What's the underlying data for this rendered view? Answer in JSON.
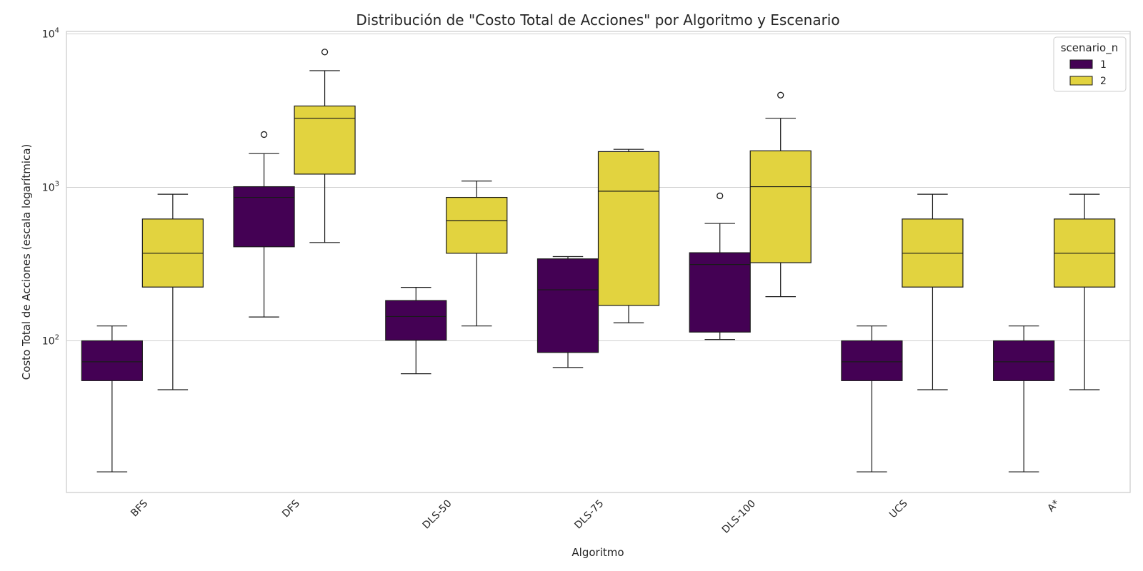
{
  "chart_data": {
    "type": "boxplot",
    "title": "Distribución de \"Costo Total de Acciones\" por Algoritmo y Escenario",
    "xlabel": "Algoritmo",
    "ylabel": "Costo Total de Acciones (escala logarítmica)",
    "yscale": "log",
    "ylim": [
      10,
      11000
    ],
    "yticks": [
      {
        "value": 100,
        "base": "10",
        "exp": "2"
      },
      {
        "value": 1000,
        "base": "10",
        "exp": "3"
      },
      {
        "value": 10000,
        "base": "10",
        "exp": "4"
      }
    ],
    "grid": "horizontal",
    "categories": [
      "BFS",
      "DFS",
      "DLS-50",
      "DLS-75",
      "DLS-100",
      "UCS",
      "A*"
    ],
    "legend": {
      "title": "scenario_n",
      "placement": "top-right"
    },
    "series": [
      {
        "name": "1",
        "color": "#440154",
        "boxes": [
          {
            "whisker_low": 14,
            "q1": 55,
            "median": 73,
            "q3": 100,
            "whisker_high": 125,
            "outliers": []
          },
          {
            "whisker_low": 143,
            "q1": 410,
            "median": 860,
            "q3": 1010,
            "whisker_high": 1660,
            "outliers": [
              2210
            ]
          },
          {
            "whisker_low": 61,
            "q1": 101,
            "median": 144,
            "q3": 183,
            "whisker_high": 223,
            "outliers": []
          },
          {
            "whisker_low": 67,
            "q1": 84,
            "median": 215,
            "q3": 342,
            "whisker_high": 354,
            "outliers": []
          },
          {
            "whisker_low": 102,
            "q1": 114,
            "median": 314,
            "q3": 375,
            "whisker_high": 582,
            "outliers": [
              880
            ]
          },
          {
            "whisker_low": 14,
            "q1": 55,
            "median": 73,
            "q3": 100,
            "whisker_high": 125,
            "outliers": []
          },
          {
            "whisker_low": 14,
            "q1": 55,
            "median": 73,
            "q3": 100,
            "whisker_high": 125,
            "outliers": []
          }
        ]
      },
      {
        "name": "2",
        "color": "#e2d33f",
        "boxes": [
          {
            "whisker_low": 48,
            "q1": 224,
            "median": 372,
            "q3": 622,
            "whisker_high": 902,
            "outliers": []
          },
          {
            "whisker_low": 437,
            "q1": 1220,
            "median": 2820,
            "q3": 3390,
            "whisker_high": 5760,
            "outliers": [
              7620
            ]
          },
          {
            "whisker_low": 125,
            "q1": 372,
            "median": 607,
            "q3": 860,
            "whisker_high": 1100,
            "outliers": []
          },
          {
            "whisker_low": 131,
            "q1": 170,
            "median": 944,
            "q3": 1710,
            "whisker_high": 1770,
            "outliers": []
          },
          {
            "whisker_low": 194,
            "q1": 323,
            "median": 1010,
            "q3": 1730,
            "whisker_high": 2820,
            "outliers": [
              3990
            ]
          },
          {
            "whisker_low": 48,
            "q1": 224,
            "median": 372,
            "q3": 622,
            "whisker_high": 902,
            "outliers": []
          },
          {
            "whisker_low": 48,
            "q1": 224,
            "median": 372,
            "q3": 622,
            "whisker_high": 902,
            "outliers": []
          }
        ]
      }
    ]
  }
}
